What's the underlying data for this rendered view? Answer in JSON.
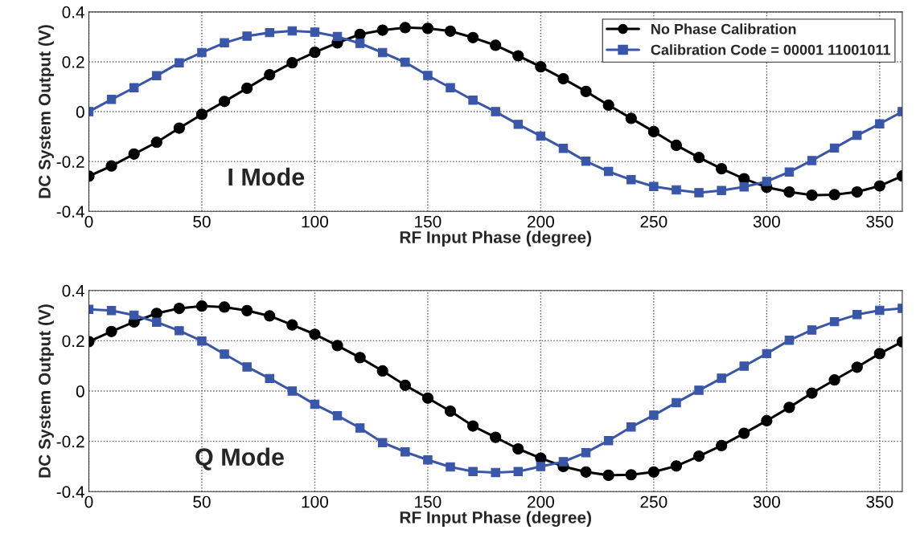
{
  "chart_data": [
    {
      "type": "line",
      "xlabel": "RF Input Phase (degree)",
      "ylabel": "DC System Output (V)",
      "annotations": [
        "I Mode"
      ],
      "xlim": [
        0,
        360
      ],
      "ylim": [
        -0.4,
        0.4
      ],
      "xticks": [
        0,
        50,
        100,
        150,
        200,
        250,
        300,
        350
      ],
      "yticks": [
        -0.4,
        -0.2,
        0,
        0.2,
        0.4
      ],
      "grid": true,
      "legend": "top right",
      "line_style": "solid",
      "x": [
        0,
        10,
        20,
        30,
        40,
        50,
        60,
        70,
        80,
        90,
        100,
        110,
        120,
        130,
        140,
        150,
        160,
        170,
        180,
        190,
        200,
        210,
        220,
        230,
        240,
        250,
        260,
        270,
        280,
        290,
        300,
        310,
        320,
        330,
        340,
        350,
        360
      ],
      "series": [
        {
          "name": "No Phase Calibration",
          "color": "#000000",
          "marker": "circle",
          "values": [
            -0.259,
            -0.218,
            -0.17,
            -0.123,
            -0.066,
            -0.011,
            0.041,
            0.094,
            0.148,
            0.196,
            0.238,
            0.276,
            0.31,
            0.327,
            0.337,
            0.334,
            0.323,
            0.297,
            0.266,
            0.224,
            0.18,
            0.132,
            0.081,
            0.026,
            -0.027,
            -0.08,
            -0.135,
            -0.184,
            -0.229,
            -0.269,
            -0.303,
            -0.322,
            -0.335,
            -0.333,
            -0.322,
            -0.298,
            -0.258
          ]
        },
        {
          "name": "Calibration Code = 00001 11001011",
          "color": "#3a56a8",
          "marker": "square",
          "values": [
            0.0,
            0.049,
            0.096,
            0.144,
            0.196,
            0.237,
            0.276,
            0.303,
            0.317,
            0.324,
            0.319,
            0.301,
            0.274,
            0.237,
            0.198,
            0.145,
            0.096,
            0.046,
            0.0,
            -0.051,
            -0.098,
            -0.147,
            -0.199,
            -0.24,
            -0.273,
            -0.3,
            -0.314,
            -0.325,
            -0.316,
            -0.302,
            -0.28,
            -0.242,
            -0.196,
            -0.146,
            -0.095,
            -0.049,
            0.0
          ]
        }
      ]
    },
    {
      "type": "line",
      "xlabel": "RF Input Phase (degree)",
      "ylabel": "DC System Output (V)",
      "annotations": [
        "Q Mode"
      ],
      "xlim": [
        0,
        360
      ],
      "ylim": [
        -0.4,
        0.4
      ],
      "xticks": [
        0,
        50,
        100,
        150,
        200,
        250,
        300,
        350
      ],
      "yticks": [
        -0.4,
        -0.2,
        0,
        0.2,
        0.4
      ],
      "grid": true,
      "line_style": "solid",
      "x": [
        0,
        10,
        20,
        30,
        40,
        50,
        60,
        70,
        80,
        90,
        100,
        110,
        120,
        130,
        140,
        150,
        160,
        170,
        180,
        190,
        200,
        210,
        220,
        230,
        240,
        250,
        260,
        270,
        280,
        290,
        300,
        310,
        320,
        330,
        340,
        350,
        360
      ],
      "series": [
        {
          "color": "#000000",
          "marker": "circle",
          "values": [
            0.197,
            0.237,
            0.275,
            0.309,
            0.329,
            0.338,
            0.334,
            0.32,
            0.299,
            0.263,
            0.226,
            0.181,
            0.133,
            0.08,
            0.023,
            -0.028,
            -0.08,
            -0.139,
            -0.184,
            -0.23,
            -0.267,
            -0.3,
            -0.322,
            -0.335,
            -0.333,
            -0.322,
            -0.298,
            -0.259,
            -0.217,
            -0.168,
            -0.118,
            -0.065,
            -0.008,
            0.044,
            0.095,
            0.149,
            0.196
          ]
        },
        {
          "color": "#3a56a8",
          "marker": "square",
          "values": [
            0.325,
            0.32,
            0.302,
            0.274,
            0.24,
            0.199,
            0.147,
            0.096,
            0.05,
            0.0,
            -0.053,
            -0.098,
            -0.147,
            -0.205,
            -0.242,
            -0.274,
            -0.302,
            -0.32,
            -0.324,
            -0.32,
            -0.3,
            -0.281,
            -0.245,
            -0.197,
            -0.143,
            -0.096,
            -0.046,
            0.003,
            0.051,
            0.099,
            0.149,
            0.202,
            0.243,
            0.276,
            0.304,
            0.321,
            0.329
          ]
        }
      ]
    }
  ]
}
